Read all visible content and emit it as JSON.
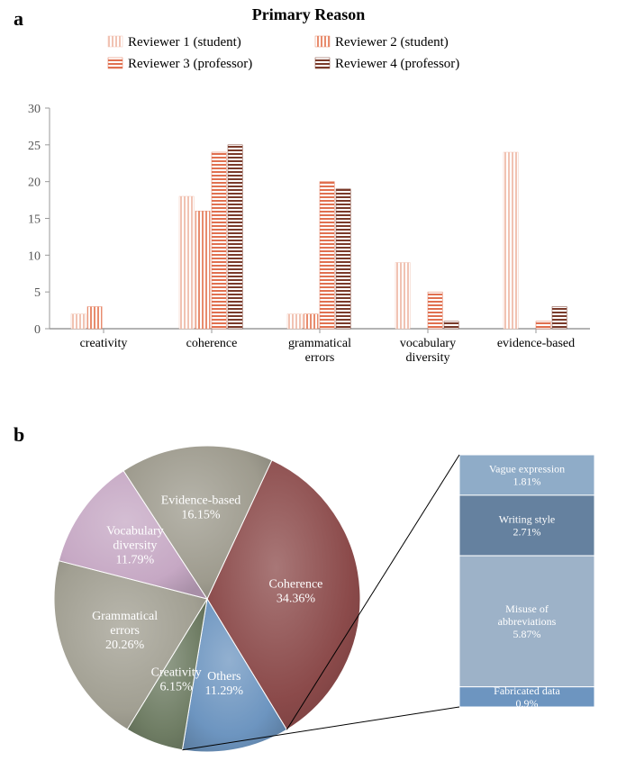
{
  "panel_a": {
    "label": "a",
    "title": "Primary Reason",
    "categories": [
      "creativity",
      "coherence",
      "grammatical\nerrors",
      "vocabulary\ndiversity",
      "evidence-based"
    ],
    "series": [
      {
        "name": "Reviewer 1 (student)",
        "color": "#f1c3b3",
        "pattern": "vertical",
        "values": [
          2,
          18,
          2,
          9,
          24
        ]
      },
      {
        "name": "Reviewer 2 (student)",
        "color": "#e88c6e",
        "pattern": "vertical",
        "values": [
          3,
          16,
          2,
          0,
          0
        ]
      },
      {
        "name": "Reviewer 3 (professor)",
        "color": "#e07050",
        "pattern": "horizontal",
        "values": [
          0,
          24,
          20,
          5,
          1
        ]
      },
      {
        "name": "Reviewer 4 (professor)",
        "color": "#7a3a2a",
        "pattern": "horizontal",
        "values": [
          0,
          25,
          19,
          1,
          3
        ]
      }
    ],
    "y": {
      "min": 0,
      "max": 30,
      "step": 5
    },
    "axis_color": "#9a9a9a",
    "tick_fontsize": 14,
    "category_fontsize": 14,
    "legend_fontsize": 15,
    "bar_group_width": 0.6,
    "background": "#ffffff"
  },
  "panel_b": {
    "label": "b",
    "pie": {
      "slices": [
        {
          "label": "Coherence",
          "value": 34.36,
          "color": "#8b4a4a"
        },
        {
          "label": "Others",
          "value": 11.29,
          "color": "#6d95c0"
        },
        {
          "label": "Creativity",
          "value": 6.15,
          "color": "#6f7d64"
        },
        {
          "label": "Grammatical\nerrors",
          "value": 20.26,
          "color": "#a19f92"
        },
        {
          "label": "Vocabulary\ndiversity",
          "value": 11.79,
          "color": "#c6a8c4"
        },
        {
          "label": "Evidence-based",
          "value": 16.15,
          "color": "#9e9b8e"
        }
      ],
      "start_angle_deg": -65,
      "label_fontsize": 14,
      "label_color": "#ffffff",
      "bevel": true
    },
    "breakout": {
      "total": 11.29,
      "segments": [
        {
          "label": "Vague expression",
          "value": 1.81,
          "color": "#8facc8"
        },
        {
          "label": "Writing style",
          "value": 2.71,
          "color": "#65819f"
        },
        {
          "label": "Misuse of\nabbreviations",
          "value": 5.87,
          "color": "#9db2c8"
        },
        {
          "label": "Fabricated data",
          "value": 0.9,
          "color": "#6d95c0"
        }
      ],
      "label_fontsize": 12,
      "label_color": "#ffffff",
      "leader_color": "#000000"
    }
  }
}
